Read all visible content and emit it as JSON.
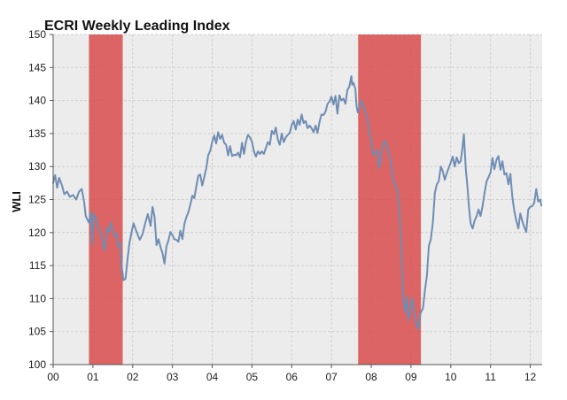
{
  "chart_data": {
    "type": "line",
    "title": "ECRI Weekly Leading Index",
    "xlabel": "",
    "ylabel": "WLI",
    "x_tick_labels": [
      "00",
      "01",
      "02",
      "03",
      "04",
      "05",
      "06",
      "07",
      "08",
      "09",
      "10",
      "11",
      "12"
    ],
    "x_ticks": [
      2000,
      2001,
      2002,
      2003,
      2004,
      2005,
      2006,
      2007,
      2008,
      2009,
      2010,
      2011,
      2012
    ],
    "xlim": [
      2000.0,
      2012.3
    ],
    "ylim": [
      100,
      150
    ],
    "y_ticks": [
      100,
      105,
      110,
      115,
      120,
      125,
      130,
      135,
      140,
      145,
      150
    ],
    "grid": true,
    "legend": "none",
    "colors": {
      "line": "#6f8db3",
      "recession": "#d94c4c",
      "plot_bg": "#ececec",
      "grid": "#cfcfcf"
    },
    "recessions": [
      {
        "start": 2000.9,
        "end": 2001.75
      },
      {
        "start": 2007.67,
        "end": 2009.25
      }
    ],
    "series": [
      {
        "values": [
          [
            2000.0,
            127.5
          ],
          [
            2000.05,
            128.7
          ],
          [
            2000.1,
            126.8
          ],
          [
            2000.15,
            128.3
          ],
          [
            2000.22,
            127.2
          ],
          [
            2000.28,
            125.8
          ],
          [
            2000.35,
            126.2
          ],
          [
            2000.42,
            125.4
          ],
          [
            2000.5,
            125.7
          ],
          [
            2000.58,
            125.0
          ],
          [
            2000.65,
            126.2
          ],
          [
            2000.72,
            126.6
          ],
          [
            2000.78,
            124.6
          ],
          [
            2000.82,
            122.5
          ],
          [
            2000.86,
            122.0
          ],
          [
            2000.9,
            121.5
          ],
          [
            2000.95,
            123.1
          ],
          [
            2000.98,
            118.2
          ],
          [
            2001.02,
            122.8
          ],
          [
            2001.06,
            122.5
          ],
          [
            2001.1,
            121.3
          ],
          [
            2001.15,
            120.6
          ],
          [
            2001.2,
            119.6
          ],
          [
            2001.25,
            118.4
          ],
          [
            2001.3,
            117.3
          ],
          [
            2001.35,
            120.6
          ],
          [
            2001.4,
            120.1
          ],
          [
            2001.45,
            121.5
          ],
          [
            2001.5,
            120.2
          ],
          [
            2001.55,
            119.4
          ],
          [
            2001.6,
            119.8
          ],
          [
            2001.65,
            117.8
          ],
          [
            2001.68,
            118.4
          ],
          [
            2001.72,
            115.0
          ],
          [
            2001.77,
            112.8
          ],
          [
            2001.82,
            113.0
          ],
          [
            2001.87,
            115.9
          ],
          [
            2001.92,
            118.5
          ],
          [
            2001.98,
            120.3
          ],
          [
            2002.02,
            121.4
          ],
          [
            2002.1,
            120.1
          ],
          [
            2002.18,
            118.9
          ],
          [
            2002.25,
            119.8
          ],
          [
            2002.32,
            121.5
          ],
          [
            2002.38,
            122.8
          ],
          [
            2002.45,
            121.0
          ],
          [
            2002.5,
            123.9
          ],
          [
            2002.55,
            122.4
          ],
          [
            2002.6,
            118.1
          ],
          [
            2002.65,
            119.0
          ],
          [
            2002.7,
            117.8
          ],
          [
            2002.75,
            116.9
          ],
          [
            2002.8,
            115.3
          ],
          [
            2002.85,
            117.9
          ],
          [
            2002.9,
            118.8
          ],
          [
            2002.95,
            120.1
          ],
          [
            2003.0,
            119.6
          ],
          [
            2003.05,
            119.0
          ],
          [
            2003.1,
            118.9
          ],
          [
            2003.15,
            118.6
          ],
          [
            2003.2,
            120.3
          ],
          [
            2003.25,
            119.0
          ],
          [
            2003.3,
            121.3
          ],
          [
            2003.35,
            122.3
          ],
          [
            2003.4,
            123.1
          ],
          [
            2003.45,
            124.2
          ],
          [
            2003.5,
            125.6
          ],
          [
            2003.55,
            125.2
          ],
          [
            2003.6,
            127.0
          ],
          [
            2003.65,
            128.6
          ],
          [
            2003.7,
            128.8
          ],
          [
            2003.75,
            127.1
          ],
          [
            2003.8,
            128.4
          ],
          [
            2003.85,
            129.7
          ],
          [
            2003.9,
            131.7
          ],
          [
            2003.95,
            132.4
          ],
          [
            2004.0,
            133.7
          ],
          [
            2004.05,
            134.7
          ],
          [
            2004.1,
            133.5
          ],
          [
            2004.15,
            135.2
          ],
          [
            2004.2,
            134.2
          ],
          [
            2004.25,
            134.8
          ],
          [
            2004.3,
            133.6
          ],
          [
            2004.35,
            133.3
          ],
          [
            2004.4,
            131.7
          ],
          [
            2004.45,
            133.1
          ],
          [
            2004.5,
            131.6
          ],
          [
            2004.55,
            131.8
          ],
          [
            2004.6,
            131.7
          ],
          [
            2004.65,
            132.1
          ],
          [
            2004.7,
            131.4
          ],
          [
            2004.75,
            133.6
          ],
          [
            2004.8,
            131.9
          ],
          [
            2004.85,
            133.8
          ],
          [
            2004.9,
            134.8
          ],
          [
            2004.95,
            134.4
          ],
          [
            2005.0,
            133.8
          ],
          [
            2005.05,
            132.3
          ],
          [
            2005.1,
            131.5
          ],
          [
            2005.15,
            132.3
          ],
          [
            2005.2,
            131.9
          ],
          [
            2005.25,
            132.3
          ],
          [
            2005.3,
            131.9
          ],
          [
            2005.35,
            132.8
          ],
          [
            2005.4,
            133.7
          ],
          [
            2005.45,
            133.3
          ],
          [
            2005.5,
            135.4
          ],
          [
            2005.55,
            134.9
          ],
          [
            2005.6,
            135.9
          ],
          [
            2005.65,
            134.1
          ],
          [
            2005.7,
            133.3
          ],
          [
            2005.75,
            135.0
          ],
          [
            2005.8,
            133.7
          ],
          [
            2005.85,
            134.4
          ],
          [
            2005.9,
            134.8
          ],
          [
            2005.95,
            135.1
          ],
          [
            2006.0,
            136.3
          ],
          [
            2006.05,
            136.9
          ],
          [
            2006.1,
            135.6
          ],
          [
            2006.15,
            137.1
          ],
          [
            2006.2,
            136.3
          ],
          [
            2006.25,
            137.9
          ],
          [
            2006.3,
            136.6
          ],
          [
            2006.35,
            136.9
          ],
          [
            2006.4,
            135.8
          ],
          [
            2006.45,
            136.2
          ],
          [
            2006.5,
            135.8
          ],
          [
            2006.55,
            135.2
          ],
          [
            2006.6,
            136.2
          ],
          [
            2006.65,
            135.1
          ],
          [
            2006.7,
            136.8
          ],
          [
            2006.75,
            137.9
          ],
          [
            2006.8,
            137.8
          ],
          [
            2006.85,
            138.3
          ],
          [
            2006.9,
            139.5
          ],
          [
            2006.95,
            139.8
          ],
          [
            2007.0,
            140.6
          ],
          [
            2007.05,
            139.4
          ],
          [
            2007.1,
            140.7
          ],
          [
            2007.15,
            138.0
          ],
          [
            2007.2,
            140.8
          ],
          [
            2007.25,
            140.0
          ],
          [
            2007.3,
            140.3
          ],
          [
            2007.35,
            139.5
          ],
          [
            2007.4,
            141.6
          ],
          [
            2007.45,
            142.1
          ],
          [
            2007.5,
            143.7
          ],
          [
            2007.52,
            142.4
          ],
          [
            2007.55,
            142.7
          ],
          [
            2007.6,
            141.8
          ],
          [
            2007.63,
            139.2
          ],
          [
            2007.66,
            138.2
          ],
          [
            2007.7,
            138.9
          ],
          [
            2007.75,
            140.0
          ],
          [
            2007.8,
            139.3
          ],
          [
            2007.85,
            138.2
          ],
          [
            2007.9,
            137.5
          ],
          [
            2007.95,
            135.2
          ],
          [
            2008.0,
            134.0
          ],
          [
            2008.05,
            131.8
          ],
          [
            2008.1,
            131.9
          ],
          [
            2008.15,
            132.5
          ],
          [
            2008.2,
            129.7
          ],
          [
            2008.25,
            131.8
          ],
          [
            2008.3,
            133.4
          ],
          [
            2008.35,
            133.9
          ],
          [
            2008.4,
            132.9
          ],
          [
            2008.45,
            132.0
          ],
          [
            2008.5,
            130.4
          ],
          [
            2008.55,
            128.0
          ],
          [
            2008.6,
            127.3
          ],
          [
            2008.65,
            126.5
          ],
          [
            2008.7,
            124.0
          ],
          [
            2008.75,
            118.5
          ],
          [
            2008.78,
            114.5
          ],
          [
            2008.8,
            110.5
          ],
          [
            2008.85,
            108.0
          ],
          [
            2008.9,
            110.3
          ],
          [
            2008.93,
            106.7
          ],
          [
            2008.98,
            108.1
          ],
          [
            2009.03,
            110.1
          ],
          [
            2009.08,
            107.9
          ],
          [
            2009.12,
            106.5
          ],
          [
            2009.18,
            105.4
          ],
          [
            2009.24,
            107.8
          ],
          [
            2009.3,
            108.5
          ],
          [
            2009.35,
            111.2
          ],
          [
            2009.4,
            113.5
          ],
          [
            2009.45,
            118.0
          ],
          [
            2009.5,
            119.0
          ],
          [
            2009.55,
            121.5
          ],
          [
            2009.6,
            126.0
          ],
          [
            2009.65,
            127.3
          ],
          [
            2009.7,
            127.8
          ],
          [
            2009.75,
            130.0
          ],
          [
            2009.8,
            129.3
          ],
          [
            2009.85,
            128.0
          ],
          [
            2009.9,
            129.0
          ],
          [
            2009.95,
            129.8
          ],
          [
            2010.0,
            130.6
          ],
          [
            2010.05,
            131.5
          ],
          [
            2010.1,
            130.0
          ],
          [
            2010.15,
            131.4
          ],
          [
            2010.2,
            130.5
          ],
          [
            2010.25,
            130.8
          ],
          [
            2010.3,
            133.1
          ],
          [
            2010.33,
            134.9
          ],
          [
            2010.38,
            129.5
          ],
          [
            2010.42,
            127.0
          ],
          [
            2010.46,
            123.8
          ],
          [
            2010.5,
            121.4
          ],
          [
            2010.55,
            120.6
          ],
          [
            2010.6,
            121.8
          ],
          [
            2010.65,
            122.5
          ],
          [
            2010.7,
            123.5
          ],
          [
            2010.75,
            122.5
          ],
          [
            2010.8,
            124.0
          ],
          [
            2010.85,
            126.0
          ],
          [
            2010.9,
            127.7
          ],
          [
            2010.95,
            128.4
          ],
          [
            2011.0,
            129.1
          ],
          [
            2011.05,
            131.3
          ],
          [
            2011.1,
            129.6
          ],
          [
            2011.15,
            131.0
          ],
          [
            2011.2,
            131.6
          ],
          [
            2011.25,
            129.5
          ],
          [
            2011.3,
            130.8
          ],
          [
            2011.35,
            128.8
          ],
          [
            2011.4,
            129.0
          ],
          [
            2011.45,
            127.3
          ],
          [
            2011.5,
            128.9
          ],
          [
            2011.55,
            125.4
          ],
          [
            2011.6,
            123.2
          ],
          [
            2011.65,
            121.8
          ],
          [
            2011.7,
            120.6
          ],
          [
            2011.75,
            122.9
          ],
          [
            2011.8,
            121.7
          ],
          [
            2011.85,
            120.8
          ],
          [
            2011.9,
            120.1
          ],
          [
            2011.95,
            123.5
          ],
          [
            2012.0,
            123.9
          ],
          [
            2012.05,
            124.0
          ],
          [
            2012.1,
            124.5
          ],
          [
            2012.15,
            126.6
          ],
          [
            2012.2,
            124.7
          ],
          [
            2012.25,
            125.0
          ],
          [
            2012.28,
            124.1
          ]
        ]
      }
    ]
  }
}
